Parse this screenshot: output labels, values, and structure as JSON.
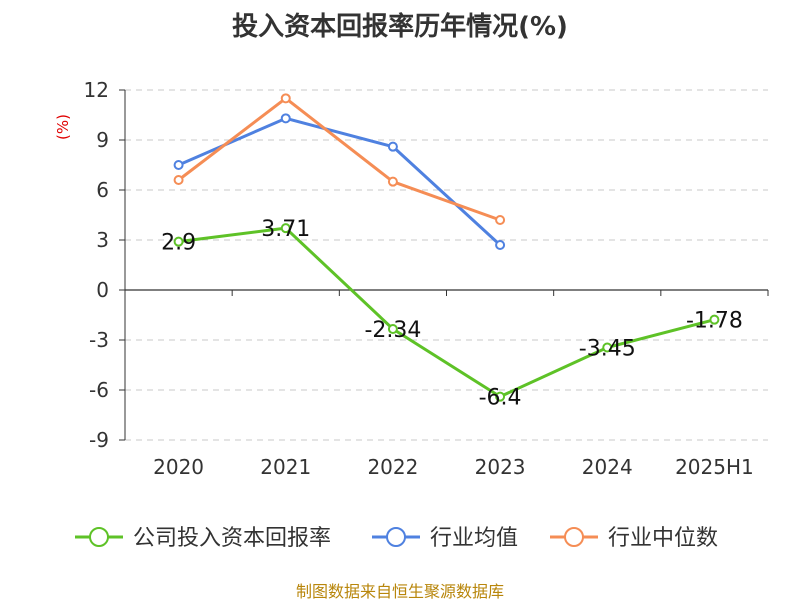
{
  "chart_data": {
    "type": "line",
    "title": "投入资本回报率历年情况(%)",
    "ylabel": "(%)",
    "categories": [
      "2020",
      "2021",
      "2022",
      "2023",
      "2024",
      "2025H1"
    ],
    "ylim": [
      -9,
      12
    ],
    "yticks": [
      12,
      9,
      6,
      3,
      0,
      -3,
      -6,
      -9
    ],
    "grid": true,
    "legend_position": "bottom",
    "series": [
      {
        "name": "公司投入资本回报率",
        "color": "#5ec227",
        "values": [
          2.9,
          3.71,
          -2.34,
          -6.4,
          -3.45,
          -1.78
        ],
        "labels": [
          "2.9",
          "3.71",
          "-2.34",
          "-6.4",
          "-3.45",
          "-1.78"
        ]
      },
      {
        "name": "行业均值",
        "color": "#4f81e0",
        "values": [
          7.5,
          10.3,
          8.6,
          2.7,
          null,
          null
        ]
      },
      {
        "name": "行业中位数",
        "color": "#f58d55",
        "values": [
          6.6,
          11.5,
          6.5,
          4.2,
          null,
          null
        ]
      }
    ]
  },
  "source": "制图数据来自恒生聚源数据库"
}
